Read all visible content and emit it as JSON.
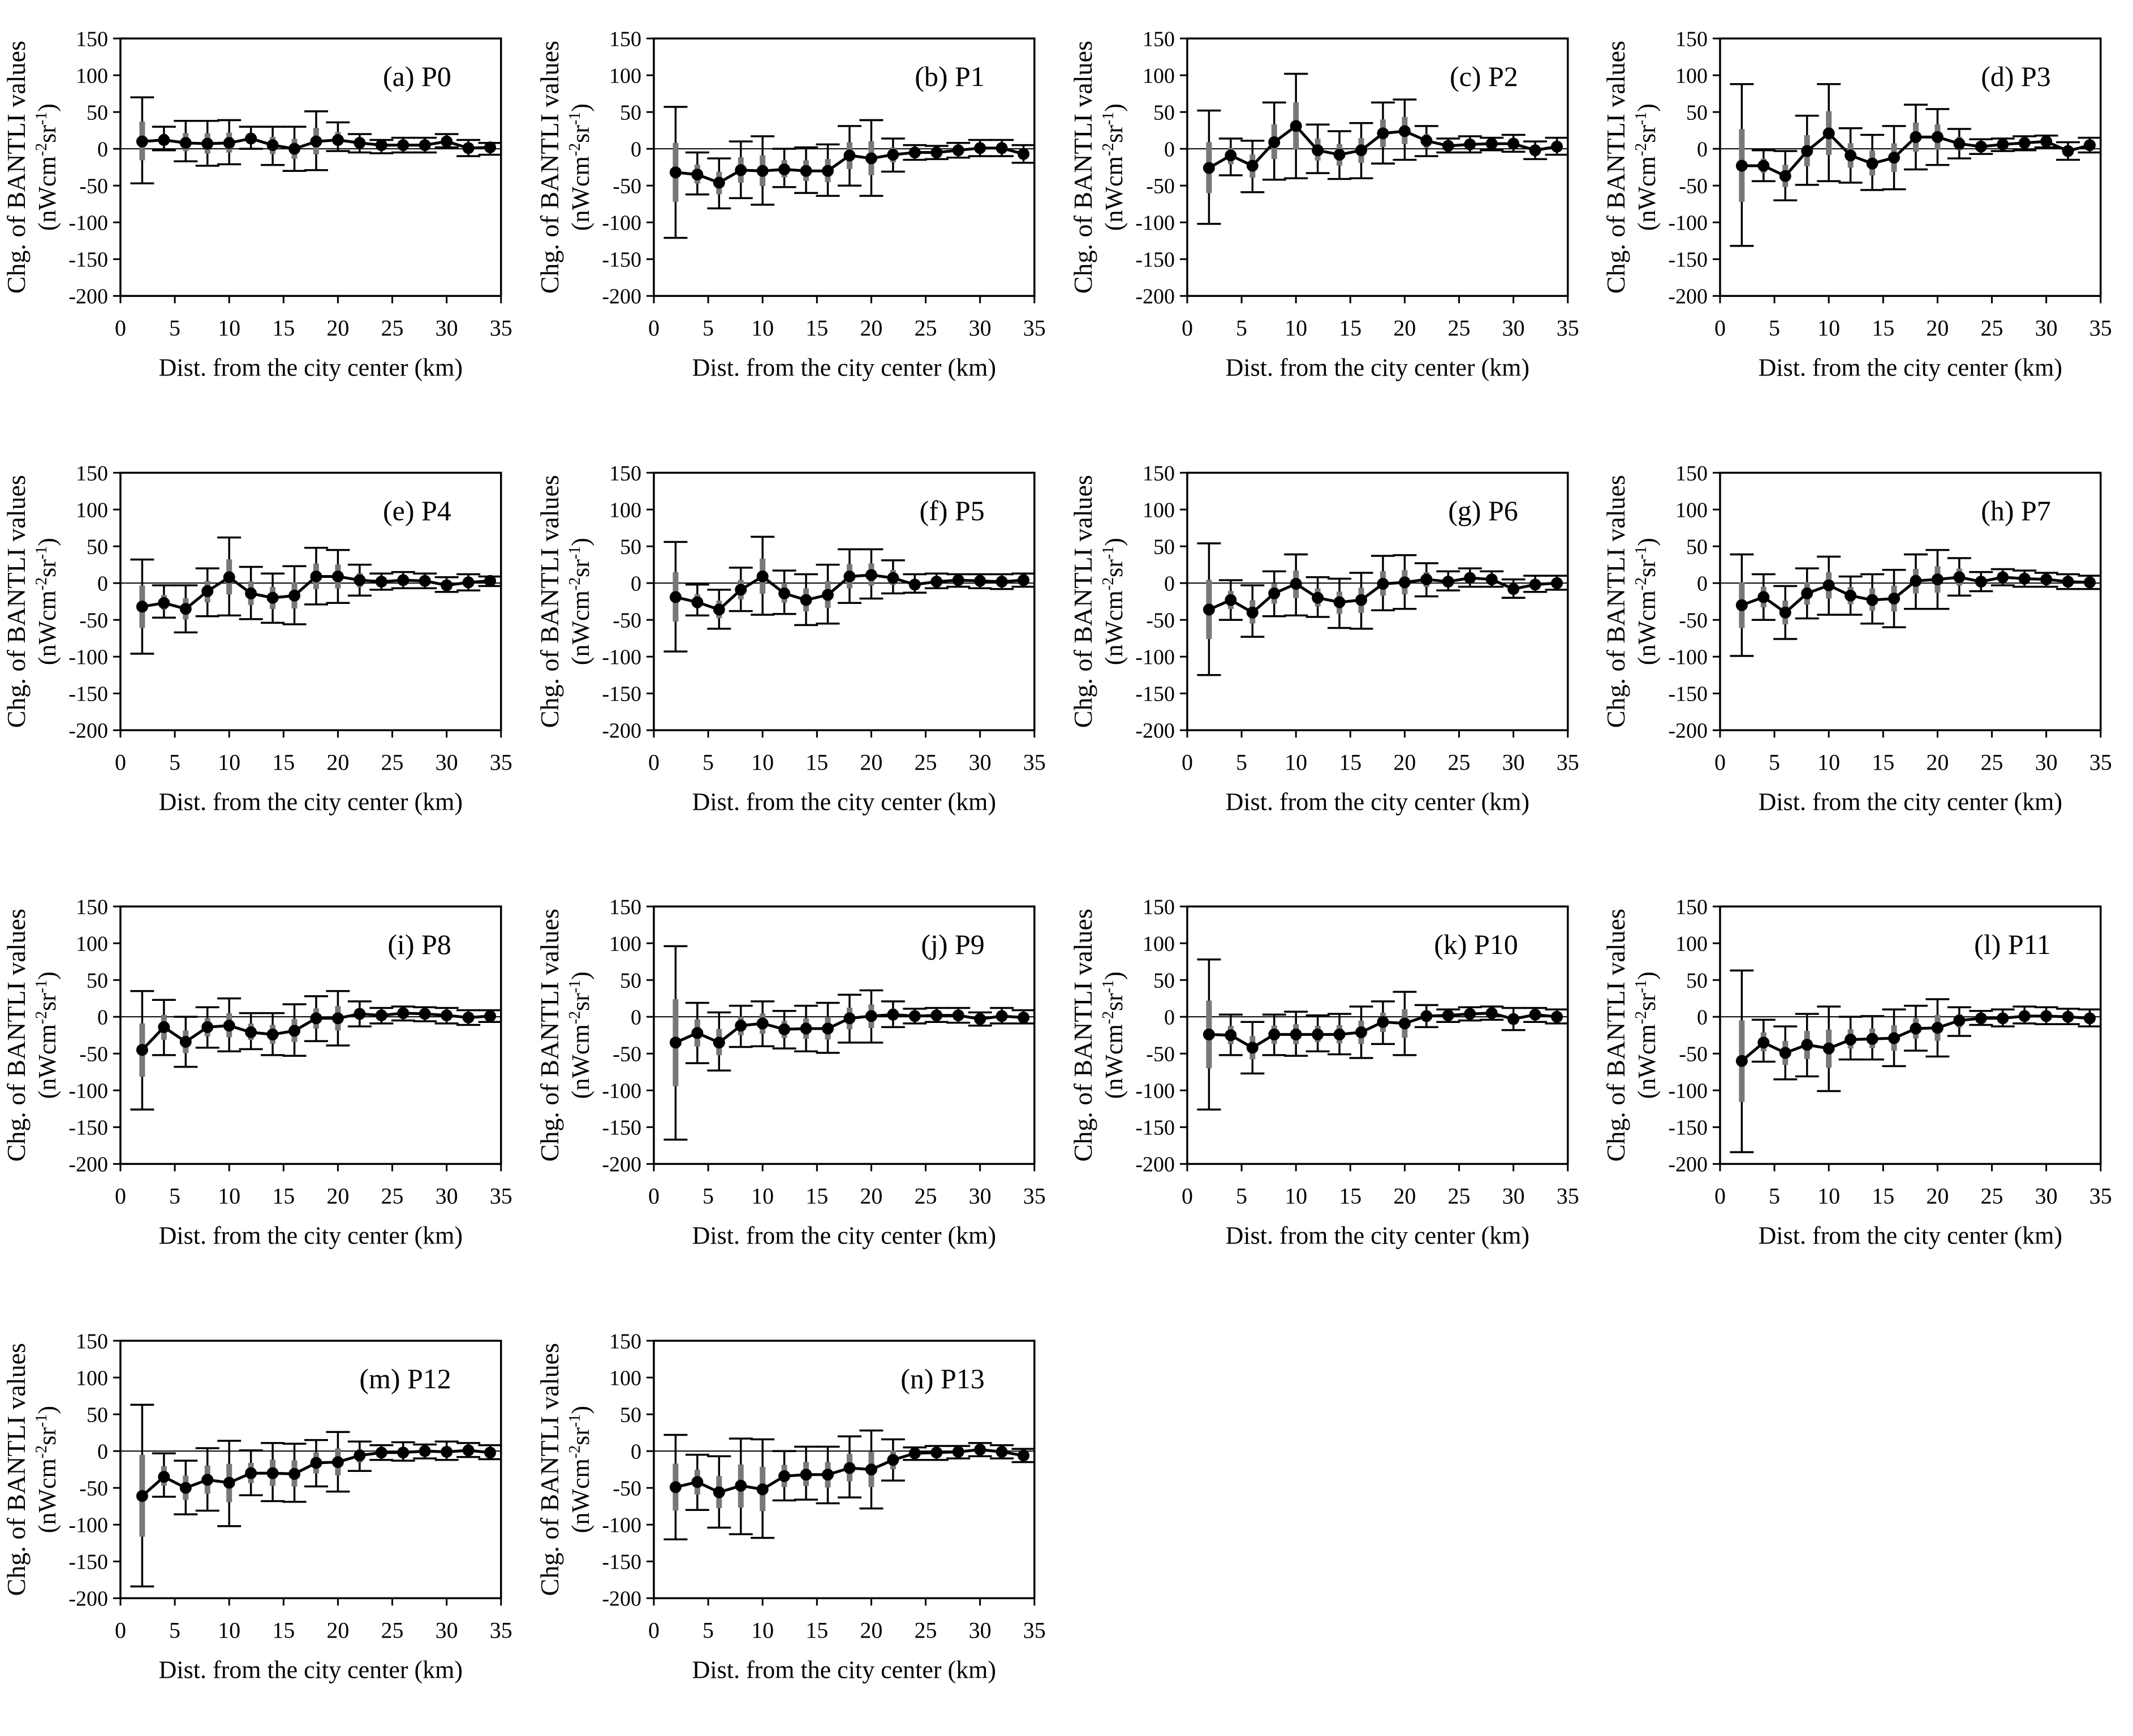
{
  "figure": {
    "background": "#ffffff",
    "panel_count": 14
  },
  "chart_data": {
    "type": "line",
    "grid": false,
    "marker": "filled-circle",
    "line_color": "#000000",
    "marker_color": "#000000",
    "error_bar_color": "#000000",
    "inner_error_color": "#787878",
    "inner_error_fraction": 0.45,
    "xlabel": "Dist. from the city center (km)",
    "ylabel_line1": "Chg. of BANTLI values",
    "ylabel_unit_parts": [
      {
        "t": "(nWcm",
        "sup": false
      },
      {
        "t": "-2",
        "sup": true
      },
      {
        "t": "sr",
        "sup": false
      },
      {
        "t": "-1",
        "sup": true
      },
      {
        "t": ")",
        "sup": false
      }
    ],
    "xlim": [
      0,
      35
    ],
    "ylim": [
      -200,
      150
    ],
    "x_ticks": [
      0,
      5,
      10,
      15,
      20,
      25,
      30,
      35
    ],
    "y_ticks": [
      150,
      100,
      50,
      0,
      -50,
      -100,
      -150,
      -200
    ],
    "zero_line": true,
    "x": [
      2,
      4,
      6,
      8,
      10,
      12,
      14,
      16,
      18,
      20,
      22,
      24,
      26,
      28,
      30,
      32,
      34
    ],
    "panels": [
      {
        "id": "a-P0",
        "label": "(a) P0",
        "y": [
          10,
          12,
          8,
          7,
          8,
          14,
          5,
          0,
          10,
          12,
          8,
          5,
          5,
          5,
          10,
          1,
          2
        ],
        "err_up": [
          60,
          18,
          30,
          31,
          31,
          16,
          25,
          30,
          41,
          24,
          12,
          7,
          10,
          10,
          10,
          11,
          6
        ],
        "err_dn": [
          57,
          14,
          25,
          30,
          29,
          14,
          27,
          30,
          39,
          15,
          13,
          11,
          10,
          10,
          8,
          11,
          10
        ]
      },
      {
        "id": "b-P1",
        "label": "(b) P1",
        "y": [
          -32,
          -35,
          -46,
          -29,
          -30,
          -28,
          -30,
          -30,
          -9,
          -13,
          -8,
          -5,
          -5,
          -2,
          1,
          1,
          -7
        ],
        "err_up": [
          89,
          30,
          33,
          39,
          47,
          28,
          32,
          36,
          40,
          52,
          22,
          10,
          9,
          10,
          11,
          11,
          12
        ],
        "err_dn": [
          89,
          27,
          35,
          38,
          46,
          24,
          30,
          34,
          41,
          51,
          23,
          10,
          9,
          10,
          11,
          11,
          12
        ]
      },
      {
        "id": "c-P2",
        "label": "(c) P2",
        "y": [
          -26,
          -9,
          -23,
          9,
          31,
          -2,
          -8,
          -2,
          21,
          24,
          11,
          4,
          6,
          7,
          7,
          -2,
          3
        ],
        "err_up": [
          78,
          23,
          34,
          54,
          71,
          35,
          32,
          37,
          42,
          43,
          20,
          10,
          11,
          8,
          12,
          12,
          12
        ],
        "err_dn": [
          76,
          27,
          36,
          51,
          71,
          31,
          33,
          38,
          41,
          39,
          21,
          9,
          11,
          9,
          11,
          12,
          11
        ]
      },
      {
        "id": "d-P3",
        "label": "(d) P3",
        "y": [
          -23,
          -23,
          -37,
          -3,
          21,
          -9,
          -20,
          -12,
          16,
          16,
          7,
          3,
          6,
          8,
          10,
          -3,
          5
        ],
        "err_up": [
          111,
          21,
          34,
          48,
          67,
          37,
          39,
          43,
          44,
          38,
          20,
          10,
          8,
          9,
          8,
          12,
          10
        ],
        "err_dn": [
          109,
          21,
          33,
          46,
          65,
          37,
          36,
          43,
          44,
          38,
          20,
          10,
          9,
          10,
          8,
          12,
          10
        ]
      },
      {
        "id": "e-P4",
        "label": "(e) P4",
        "y": [
          -32,
          -27,
          -35,
          -11,
          8,
          -14,
          -20,
          -17,
          9,
          9,
          4,
          2,
          4,
          3,
          -3,
          1,
          3
        ],
        "err_up": [
          64,
          24,
          32,
          31,
          54,
          36,
          33,
          40,
          39,
          36,
          21,
          11,
          11,
          10,
          11,
          11,
          6
        ],
        "err_dn": [
          64,
          20,
          32,
          34,
          52,
          35,
          34,
          39,
          38,
          36,
          21,
          11,
          11,
          10,
          9,
          11,
          7
        ]
      },
      {
        "id": "f-P5",
        "label": "(f) P5",
        "y": [
          -19,
          -26,
          -36,
          -9,
          9,
          -14,
          -23,
          -16,
          9,
          11,
          7,
          -2,
          2,
          4,
          3,
          2,
          4
        ],
        "err_up": [
          75,
          24,
          27,
          30,
          54,
          31,
          35,
          41,
          37,
          35,
          24,
          14,
          11,
          8,
          9,
          10,
          9
        ],
        "err_dn": [
          74,
          18,
          26,
          29,
          52,
          28,
          34,
          39,
          36,
          32,
          21,
          11,
          9,
          9,
          10,
          10,
          9
        ]
      },
      {
        "id": "g-P6",
        "label": "(g) P6",
        "y": [
          -36,
          -23,
          -40,
          -14,
          -1,
          -20,
          -26,
          -23,
          -1,
          1,
          5,
          2,
          7,
          5,
          -8,
          -2,
          0
        ],
        "err_up": [
          90,
          27,
          37,
          30,
          40,
          28,
          32,
          37,
          38,
          37,
          22,
          14,
          13,
          11,
          13,
          12,
          10
        ],
        "err_dn": [
          89,
          27,
          33,
          31,
          43,
          26,
          35,
          39,
          36,
          36,
          23,
          12,
          12,
          10,
          12,
          10,
          9
        ]
      },
      {
        "id": "h-P7",
        "label": "(h) P7",
        "y": [
          -30,
          -19,
          -40,
          -14,
          -3,
          -17,
          -23,
          -21,
          3,
          5,
          8,
          2,
          8,
          6,
          5,
          2,
          1
        ],
        "err_up": [
          69,
          31,
          36,
          34,
          39,
          26,
          35,
          39,
          36,
          40,
          26,
          13,
          11,
          11,
          9,
          10,
          9
        ],
        "err_dn": [
          69,
          31,
          36,
          34,
          40,
          26,
          32,
          39,
          38,
          40,
          25,
          13,
          11,
          11,
          10,
          10,
          9
        ]
      },
      {
        "id": "i-P8",
        "label": "(i) P8",
        "y": [
          -45,
          -14,
          -34,
          -14,
          -12,
          -21,
          -24,
          -19,
          -2,
          -2,
          4,
          2,
          5,
          4,
          2,
          -1,
          1
        ],
        "err_up": [
          80,
          37,
          34,
          27,
          37,
          26,
          29,
          36,
          30,
          37,
          17,
          10,
          9,
          9,
          10,
          10,
          8
        ],
        "err_dn": [
          81,
          38,
          34,
          28,
          35,
          23,
          28,
          34,
          31,
          37,
          17,
          11,
          10,
          10,
          11,
          10,
          8
        ]
      },
      {
        "id": "j-P9",
        "label": "(j) P9",
        "y": [
          -35,
          -22,
          -35,
          -12,
          -9,
          -17,
          -16,
          -16,
          -2,
          1,
          3,
          1,
          2,
          2,
          -3,
          1,
          -1
        ],
        "err_up": [
          131,
          41,
          41,
          27,
          30,
          25,
          31,
          35,
          32,
          35,
          18,
          10,
          10,
          10,
          9,
          11,
          10
        ],
        "err_dn": [
          132,
          41,
          38,
          29,
          31,
          26,
          31,
          33,
          33,
          36,
          17,
          10,
          9,
          10,
          9,
          10,
          8
        ]
      },
      {
        "id": "k-P10",
        "label": "(k) P10",
        "y": [
          -24,
          -25,
          -42,
          -24,
          -24,
          -24,
          -24,
          -21,
          -7,
          -9,
          1,
          2,
          4,
          5,
          -3,
          3,
          0
        ],
        "err_up": [
          102,
          28,
          35,
          27,
          31,
          26,
          28,
          35,
          28,
          43,
          15,
          8,
          9,
          9,
          15,
          9,
          10
        ],
        "err_dn": [
          102,
          27,
          35,
          28,
          29,
          23,
          27,
          35,
          30,
          43,
          15,
          9,
          9,
          9,
          15,
          10,
          9
        ]
      },
      {
        "id": "l-P11",
        "label": "(l) P11",
        "y": [
          -60,
          -35,
          -49,
          -38,
          -43,
          -31,
          -30,
          -29,
          -16,
          -15,
          -5,
          -2,
          -2,
          1,
          1,
          0,
          -2
        ],
        "err_up": [
          123,
          31,
          36,
          42,
          57,
          31,
          31,
          39,
          31,
          39,
          18,
          10,
          12,
          13,
          12,
          11,
          12
        ],
        "err_dn": [
          124,
          26,
          36,
          43,
          58,
          27,
          28,
          38,
          30,
          39,
          21,
          9,
          11,
          10,
          11,
          10,
          11
        ]
      },
      {
        "id": "m-P12",
        "label": "(m) P12",
        "y": [
          -61,
          -35,
          -50,
          -39,
          -43,
          -30,
          -30,
          -31,
          -16,
          -15,
          -6,
          -2,
          -2,
          0,
          -1,
          1,
          -2
        ],
        "err_up": [
          124,
          32,
          37,
          43,
          57,
          31,
          41,
          41,
          31,
          41,
          19,
          10,
          14,
          9,
          14,
          10,
          10
        ],
        "err_dn": [
          123,
          27,
          36,
          42,
          59,
          30,
          38,
          38,
          32,
          40,
          21,
          10,
          11,
          10,
          11,
          9,
          9
        ]
      },
      {
        "id": "n-P13",
        "label": "(n) P13",
        "y": [
          -49,
          -42,
          -56,
          -47,
          -52,
          -34,
          -32,
          -32,
          -23,
          -25,
          -12,
          -3,
          -2,
          -1,
          2,
          -1,
          -6
        ],
        "err_up": [
          71,
          37,
          49,
          64,
          68,
          34,
          38,
          38,
          43,
          53,
          28,
          8,
          9,
          8,
          9,
          9,
          9
        ],
        "err_dn": [
          71,
          38,
          48,
          66,
          66,
          33,
          34,
          39,
          40,
          53,
          28,
          9,
          10,
          9,
          9,
          9,
          9
        ]
      }
    ]
  }
}
